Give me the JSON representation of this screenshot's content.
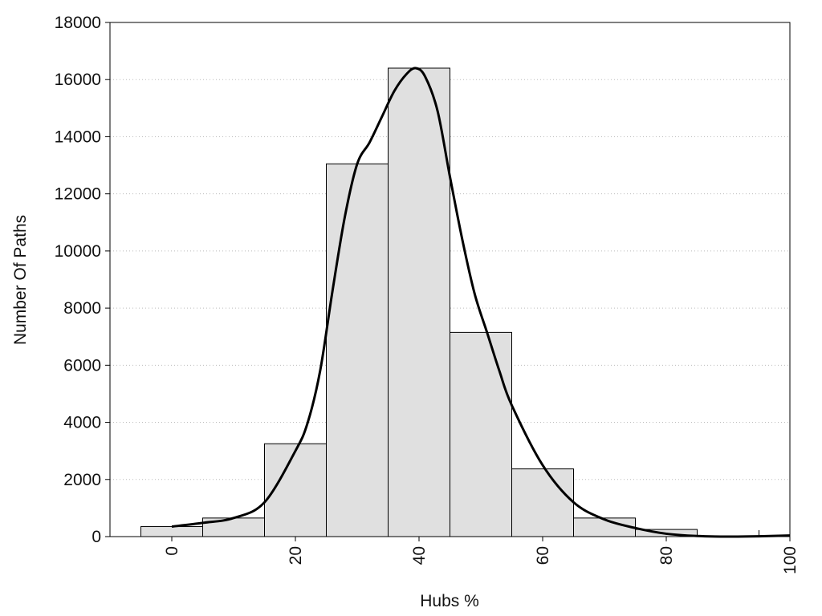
{
  "chart_data": {
    "type": "bar",
    "xlabel": "Hubs %",
    "ylabel": "Number Of Paths",
    "xlim": [
      -10,
      100
    ],
    "ylim": [
      0,
      18000
    ],
    "xticks": [
      0,
      20,
      40,
      60,
      80,
      100
    ],
    "yticks": [
      0,
      2000,
      4000,
      6000,
      8000,
      10000,
      12000,
      14000,
      16000,
      18000
    ],
    "grid": "horizontal dotted",
    "bin_width": 10,
    "bins": [
      {
        "center": 0,
        "value": 350
      },
      {
        "center": 10,
        "value": 650
      },
      {
        "center": 20,
        "value": 3250
      },
      {
        "center": 30,
        "value": 13050
      },
      {
        "center": 40,
        "value": 16400
      },
      {
        "center": 50,
        "value": 7150
      },
      {
        "center": 60,
        "value": 2370
      },
      {
        "center": 70,
        "value": 650
      },
      {
        "center": 80,
        "value": 250
      },
      {
        "center": 90,
        "value": 0
      },
      {
        "center": 100,
        "value": 0
      }
    ],
    "curve": {
      "x": [
        0,
        5,
        10,
        15,
        20,
        22,
        24,
        26,
        28,
        30,
        32,
        34,
        36,
        38,
        39.5,
        41,
        43,
        45,
        47,
        49,
        51,
        53,
        55,
        60,
        65,
        70,
        75,
        80,
        85,
        90,
        95,
        100
      ],
      "y": [
        350,
        480,
        650,
        1200,
        3000,
        4000,
        5800,
        8600,
        11200,
        13050,
        13800,
        14700,
        15600,
        16200,
        16400,
        16100,
        14900,
        12600,
        10400,
        8500,
        7150,
        5800,
        4600,
        2500,
        1200,
        600,
        300,
        100,
        20,
        0,
        10,
        40
      ]
    },
    "colors": {
      "bar_fill": "#e0e0e0",
      "bar_stroke": "#000000",
      "curve": "#000000",
      "grid": "#bbbbbb"
    }
  }
}
